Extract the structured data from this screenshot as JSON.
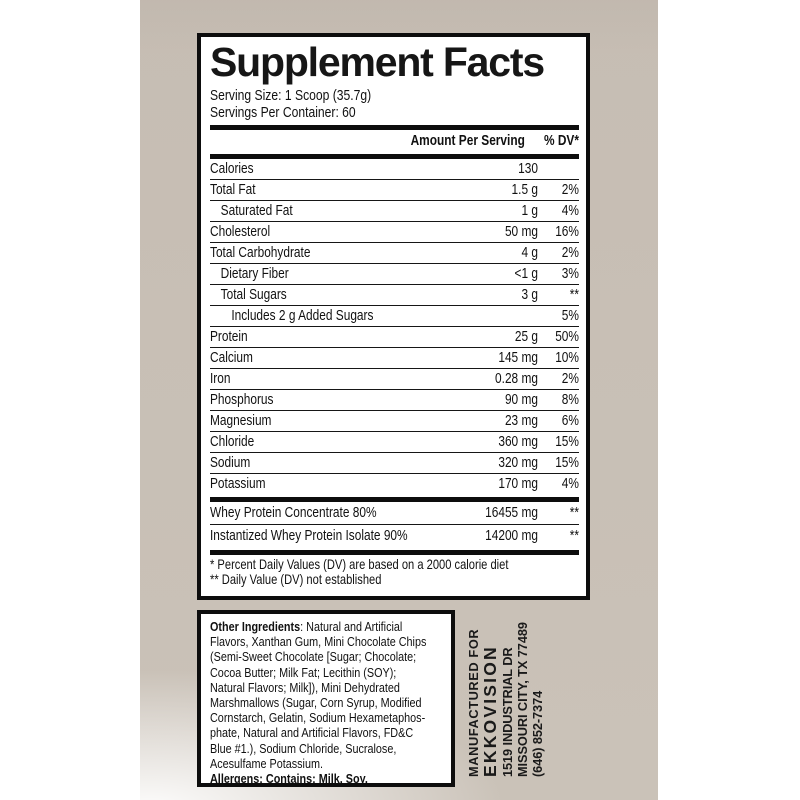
{
  "colors": {
    "label_background": "#c6bdb3",
    "panel_background": "#ffffff",
    "border_and_text": "#0d0d0d"
  },
  "panel": {
    "title": "Supplement Facts",
    "serving_size": "Serving Size: 1 Scoop (35.7g)",
    "servings_per_container": "Servings Per Container: 60",
    "header": {
      "amount": "Amount Per Serving",
      "dv": "% DV*"
    },
    "rows": [
      {
        "label": "Calories",
        "amount": "130",
        "dv": "",
        "indent": 0
      },
      {
        "label": "Total Fat",
        "amount": "1.5 g",
        "dv": "2%",
        "indent": 0
      },
      {
        "label": "Saturated Fat",
        "amount": "1 g",
        "dv": "4%",
        "indent": 1
      },
      {
        "label": "Cholesterol",
        "amount": "50 mg",
        "dv": "16%",
        "indent": 0
      },
      {
        "label": "Total Carbohydrate",
        "amount": "4 g",
        "dv": "2%",
        "indent": 0
      },
      {
        "label": "Dietary Fiber",
        "amount": "<1 g",
        "dv": "3%",
        "indent": 1
      },
      {
        "label": "Total Sugars",
        "amount": "3 g",
        "dv": "**",
        "indent": 1
      },
      {
        "label": "Includes 2 g Added Sugars",
        "amount": "",
        "dv": "5%",
        "indent": 2
      },
      {
        "label": "Protein",
        "amount": "25 g",
        "dv": "50%",
        "indent": 0
      },
      {
        "label": "Calcium",
        "amount": "145 mg",
        "dv": "10%",
        "indent": 0
      },
      {
        "label": "Iron",
        "amount": "0.28 mg",
        "dv": "2%",
        "indent": 0
      },
      {
        "label": "Phosphorus",
        "amount": "90 mg",
        "dv": "8%",
        "indent": 0
      },
      {
        "label": "Magnesium",
        "amount": "23 mg",
        "dv": "6%",
        "indent": 0
      },
      {
        "label": "Chloride",
        "amount": "360 mg",
        "dv": "15%",
        "indent": 0
      },
      {
        "label": "Sodium",
        "amount": "320 mg",
        "dv": "15%",
        "indent": 0
      },
      {
        "label": "Potassium",
        "amount": "170 mg",
        "dv": "4%",
        "indent": 0
      }
    ],
    "blend_rows": [
      {
        "label": "Whey Protein Concentrate 80%",
        "amount": "16455 mg",
        "dv": "**",
        "indent": 0
      },
      {
        "label": "Instantized Whey Protein Isolate 90%",
        "amount": "14200 mg",
        "dv": "**",
        "indent": 0
      }
    ],
    "footnotes": [
      "* Percent Daily Values (DV) are based on a 2000 calorie diet",
      "** Daily Value (DV) not established"
    ]
  },
  "ingredients": {
    "label": "Other Ingredients",
    "first_line_rest": ": Natural and Artificial",
    "lines": [
      "Flavors, Xanthan Gum, Mini Chocolate Chips",
      "(Semi-Sweet Chocolate [Sugar; Chocolate;",
      "Cocoa Butter; Milk Fat; Lecithin (SOY);",
      "Natural Flavors; Milk]), Mini Dehydrated",
      "Marshmallows (Sugar, Corn Syrup, Modified",
      "Cornstarch, Gelatin, Sodium Hexametaphos-",
      "phate, Natural and Artificial Flavors, FD&C",
      "Blue #1.), Sodium Chloride, Sucralose,",
      "Acesulfame Potassium."
    ],
    "allergens": "Allergens: Contains: Milk, Soy."
  },
  "manufacturer": {
    "label": "MANUFACTURED FOR",
    "name": "EKKOVISION",
    "address1": "1519 INDUSTRIAL DR",
    "address2": "MISSOURI CITY, TX 77489",
    "phone": "(646) 852-7374"
  }
}
